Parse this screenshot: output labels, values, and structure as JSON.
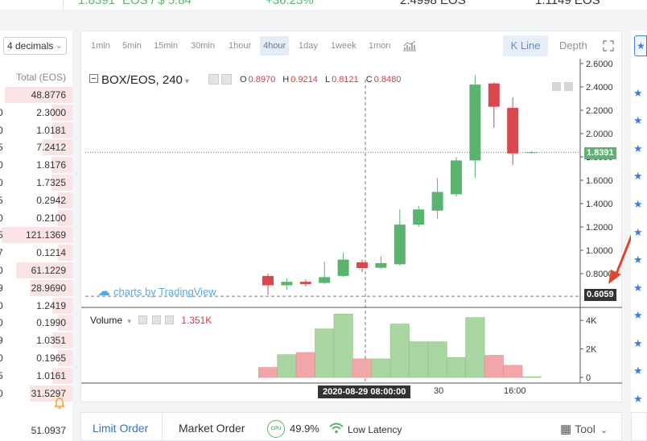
{
  "top_stats": {
    "last_price": "1.8391",
    "price_unit": "EOS / $ 5.84",
    "change": "+36.23%",
    "high": "2.4998 EOS",
    "low": "1.1149 EOS"
  },
  "order_book": {
    "decimals_label": "4 decimals",
    "total_header": "Total (EOS)",
    "rows": [
      {
        "edge": "",
        "total": "48.8776",
        "depth": 0.95
      },
      {
        "edge": "0",
        "total": "2.3000",
        "depth": 0.3
      },
      {
        "edge": "0",
        "total": "1.0181",
        "depth": 0.28
      },
      {
        "edge": "5",
        "total": "7.2412",
        "depth": 0.42
      },
      {
        "edge": "0",
        "total": "1.8176",
        "depth": 0.3
      },
      {
        "edge": "0",
        "total": "1.7325",
        "depth": 0.3
      },
      {
        "edge": "5",
        "total": "0.2942",
        "depth": 0.2
      },
      {
        "edge": "0",
        "total": "0.2100",
        "depth": 0.2
      },
      {
        "edge": "5",
        "total": "121.1369",
        "depth": 1.0
      },
      {
        "edge": "7",
        "total": "0.1214",
        "depth": 0.2
      },
      {
        "edge": "0",
        "total": "61.1229",
        "depth": 0.8
      },
      {
        "edge": "9",
        "total": "28.9690",
        "depth": 0.6
      },
      {
        "edge": "0",
        "total": "1.2419",
        "depth": 0.28
      },
      {
        "edge": "0",
        "total": "0.1990",
        "depth": 0.2
      },
      {
        "edge": "9",
        "total": "1.0351",
        "depth": 0.28
      },
      {
        "edge": "0",
        "total": "0.1965",
        "depth": 0.2
      },
      {
        "edge": "5",
        "total": "1.0161",
        "depth": 0.28
      },
      {
        "edge": "0",
        "total": "31.5297",
        "depth": 0.6
      }
    ],
    "bottom_total": "51.0937"
  },
  "toolbar": {
    "timeframes": [
      "1min",
      "5min",
      "15min",
      "30min",
      "1hour",
      "4hour",
      "1day",
      "1week",
      "1mon"
    ],
    "active_timeframe": "4hour",
    "kline_label": "K Line",
    "depth_label": "Depth"
  },
  "chart_header": {
    "symbol": "BOX/EOS, 240",
    "o_label": "O",
    "o": "0.8970",
    "h_label": "H",
    "h": "0.9214",
    "l_label": "L",
    "l": "0.8121",
    "c_label": "C",
    "c": "0.8480"
  },
  "watermark": "charts by TradingView",
  "volume_legend": {
    "label": "Volume",
    "value": "1.351K"
  },
  "cursor_time_label": "2020-08-29 08:00:00",
  "current_price_tag": "1.8391",
  "cursor_price_tag": "0.6059",
  "colors": {
    "up": "#5ab46e",
    "down": "#d9474f",
    "vol_up": "#a8d5a0",
    "vol_down": "#f1a7aa",
    "accent": "#3f7ed6",
    "arrow": "#e04530"
  },
  "chart_data": {
    "type": "candlestick",
    "price_axis_ticks": [
      "2.6000",
      "2.4000",
      "2.2000",
      "2.0000",
      "1.8000",
      "1.6000",
      "1.4000",
      "1.2000",
      "1.0000",
      "0.8000"
    ],
    "volume_axis_ticks": [
      "4K",
      "2K",
      "0"
    ],
    "x_tick_labels": [
      "30",
      "16:00"
    ],
    "candles": [
      {
        "o": 0.78,
        "h": 0.8,
        "l": 0.62,
        "c": 0.7
      },
      {
        "o": 0.7,
        "h": 0.76,
        "l": 0.66,
        "c": 0.73
      },
      {
        "o": 0.73,
        "h": 0.75,
        "l": 0.69,
        "c": 0.71
      },
      {
        "o": 0.72,
        "h": 0.9,
        "l": 0.71,
        "c": 0.77
      },
      {
        "o": 0.78,
        "h": 0.98,
        "l": 0.77,
        "c": 0.92
      },
      {
        "o": 0.897,
        "h": 0.9214,
        "l": 0.8121,
        "c": 0.848
      },
      {
        "o": 0.85,
        "h": 0.95,
        "l": 0.84,
        "c": 0.89
      },
      {
        "o": 0.88,
        "h": 1.35,
        "l": 0.87,
        "c": 1.22
      },
      {
        "o": 1.22,
        "h": 1.38,
        "l": 1.2,
        "c": 1.35
      },
      {
        "o": 1.34,
        "h": 1.62,
        "l": 1.27,
        "c": 1.5
      },
      {
        "o": 1.48,
        "h": 1.8,
        "l": 1.46,
        "c": 1.77
      },
      {
        "o": 1.77,
        "h": 2.5,
        "l": 1.62,
        "c": 2.42
      },
      {
        "o": 2.43,
        "h": 2.44,
        "l": 2.05,
        "c": 2.23
      },
      {
        "o": 2.22,
        "h": 2.31,
        "l": 1.73,
        "c": 1.83
      },
      {
        "o": 1.84,
        "h": 1.85,
        "l": 1.83,
        "c": 1.84
      }
    ],
    "volumes": [
      0.7,
      1.6,
      1.75,
      3.4,
      4.45,
      1.3,
      1.3,
      3.75,
      2.5,
      2.5,
      1.4,
      4.2,
      1.55,
      0.85,
      0.05
    ],
    "price_range": [
      0.6,
      2.6
    ],
    "volume_range": [
      0,
      4.8
    ]
  }
}
